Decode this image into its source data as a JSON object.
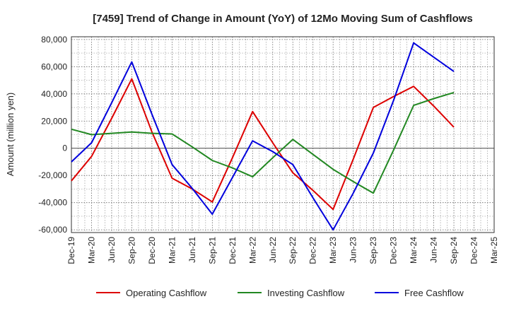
{
  "chart_data": {
    "type": "line",
    "title": "[7459]  Trend of Change in Amount (YoY) of 12Mo Moving Sum of Cashflows",
    "xlabel": "",
    "ylabel": "Amount (million yen)",
    "ylim": [
      -62000,
      82000
    ],
    "yticks": [
      80000,
      60000,
      40000,
      20000,
      0,
      -20000,
      -40000,
      -60000
    ],
    "ytick_labels": [
      "80,000",
      "60,000",
      "40,000",
      "20,000",
      "0",
      "-20,000",
      "-40,000",
      "-60,000"
    ],
    "categories": [
      "Dec-19",
      "Mar-20",
      "Jun-20",
      "Sep-20",
      "Dec-20",
      "Mar-21",
      "Jun-21",
      "Sep-21",
      "Dec-21",
      "Mar-22",
      "Jun-22",
      "Sep-22",
      "Dec-22",
      "Mar-23",
      "Jun-23",
      "Sep-23",
      "Dec-23",
      "Mar-24",
      "Jun-24",
      "Sep-24",
      "Dec-24",
      "Mar-25"
    ],
    "x_tick_labels": [
      "Dec-19",
      "Mar-20",
      "Jun-20",
      "Sep-20",
      "Dec-20",
      "Mar-21",
      "Jun-21",
      "Sep-21",
      "Dec-21",
      "Mar-22",
      "Jun-22",
      "Sep-22",
      "Dec-22",
      "Mar-23",
      "Jun-23",
      "Sep-23",
      "Dec-23",
      "Mar-24",
      "Jun-24",
      "Sep-24",
      "Dec-24",
      "Mar-25"
    ],
    "grid": true,
    "legend_position": "bottom",
    "series": [
      {
        "name": "Operating Cashflow",
        "color": "#dd0000",
        "key": "operating",
        "values": [
          -24000,
          -6000,
          22000,
          51000,
          12000,
          -22000,
          -30000,
          -39500,
          -7000,
          27000,
          4000,
          -18000,
          -31000,
          -45000,
          -8000,
          30000,
          38000,
          45500,
          31000,
          15500,
          null,
          null
        ]
      },
      {
        "name": "Investing Cashflow",
        "color": "#228822",
        "key": "investing",
        "values": [
          14000,
          10000,
          11000,
          12000,
          11000,
          10500,
          1000,
          -9000,
          -14500,
          -21000,
          -7000,
          6500,
          -4500,
          -15500,
          -24500,
          -33000,
          -1500,
          31500,
          36500,
          41000,
          null,
          null
        ]
      },
      {
        "name": "Free Cashflow",
        "color": "#0000dd",
        "key": "free",
        "values": [
          -10000,
          4000,
          33500,
          63500,
          25000,
          -12000,
          -29500,
          -48500,
          -21500,
          5500,
          -2500,
          -12000,
          -36500,
          -60000,
          -33000,
          -3500,
          35000,
          77500,
          67000,
          56500,
          null,
          null
        ]
      }
    ]
  }
}
